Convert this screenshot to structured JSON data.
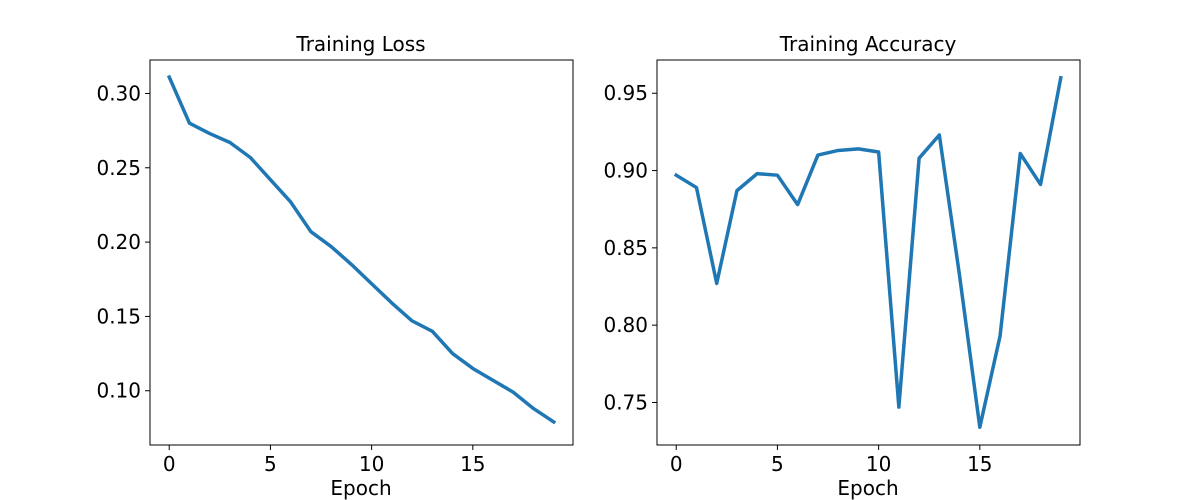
{
  "colors": {
    "series": "#1f77b4",
    "axis": "#000000",
    "background": "#ffffff"
  },
  "chart_data": [
    {
      "type": "line",
      "title": "Training Loss",
      "xlabel": "Epoch",
      "ylabel": "",
      "xlim": [
        -0.95,
        19.95
      ],
      "ylim": [
        0.0635,
        0.3225
      ],
      "xticks": [
        0,
        5,
        10,
        15
      ],
      "yticks": [
        0.1,
        0.15,
        0.2,
        0.25,
        0.3
      ],
      "ytick_labels": [
        "0.10",
        "0.15",
        "0.20",
        "0.25",
        "0.30"
      ],
      "grid": false,
      "series": [
        {
          "x": [
            0,
            1,
            2,
            3,
            4,
            5,
            6,
            7,
            8,
            9,
            10,
            11,
            12,
            13,
            14,
            15,
            16,
            17,
            18,
            19
          ],
          "values": [
            0.311,
            0.28,
            0.273,
            0.267,
            0.257,
            0.242,
            0.227,
            0.207,
            0.197,
            0.185,
            0.172,
            0.159,
            0.147,
            0.14,
            0.125,
            0.115,
            0.107,
            0.099,
            0.088,
            0.079
          ]
        }
      ]
    },
    {
      "type": "line",
      "title": "Training Accuracy",
      "xlabel": "Epoch",
      "ylabel": "",
      "xlim": [
        -0.95,
        19.95
      ],
      "ylim": [
        0.7225,
        0.9715
      ],
      "xticks": [
        0,
        5,
        10,
        15
      ],
      "yticks": [
        0.75,
        0.8,
        0.85,
        0.9,
        0.95
      ],
      "ytick_labels": [
        "0.75",
        "0.80",
        "0.85",
        "0.90",
        "0.95"
      ],
      "grid": false,
      "series": [
        {
          "x": [
            0,
            1,
            2,
            3,
            4,
            5,
            6,
            7,
            8,
            9,
            10,
            11,
            12,
            13,
            14,
            15,
            16,
            17,
            18,
            19
          ],
          "values": [
            0.897,
            0.889,
            0.827,
            0.887,
            0.898,
            0.897,
            0.878,
            0.91,
            0.913,
            0.914,
            0.912,
            0.747,
            0.908,
            0.923,
            0.832,
            0.734,
            0.793,
            0.911,
            0.891,
            0.96
          ]
        }
      ]
    }
  ]
}
